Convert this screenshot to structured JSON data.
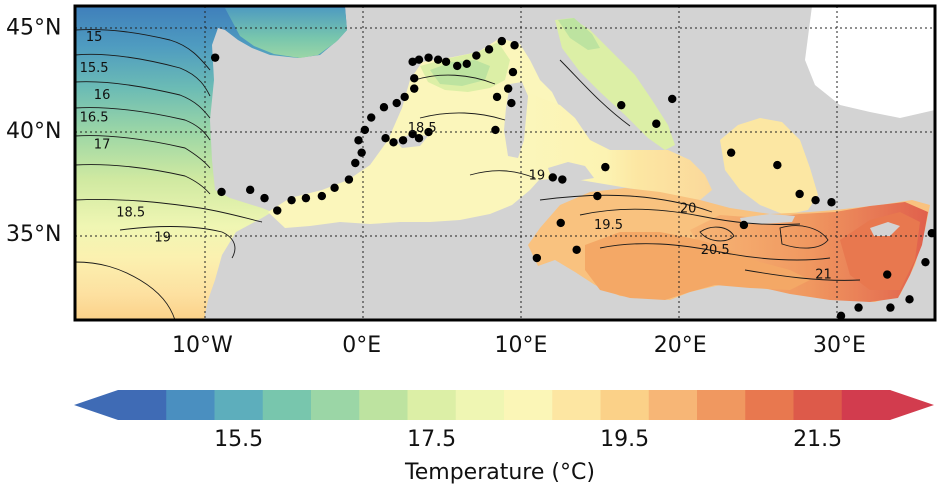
{
  "map": {
    "type": "sea-surface-temperature-map",
    "lon_range": [
      -18,
      36
    ],
    "lat_range": [
      30.8,
      46
    ],
    "grid": true,
    "land_color": "#d3d3d3",
    "lat_ticks": [
      {
        "value": 45,
        "label": "45°N"
      },
      {
        "value": 40,
        "label": "40°N"
      },
      {
        "value": 35,
        "label": "35°N"
      }
    ],
    "lon_ticks": [
      {
        "value": -10,
        "label": "10°W"
      },
      {
        "value": 0,
        "label": "0°E"
      },
      {
        "value": 10,
        "label": "10°E"
      },
      {
        "value": 20,
        "label": "20°E"
      },
      {
        "value": 30,
        "label": "30°E"
      }
    ],
    "contour_labels": [
      {
        "text": "15",
        "lon": -16.8,
        "lat": 44.3
      },
      {
        "text": "15.5",
        "lon": -16.8,
        "lat": 42.8
      },
      {
        "text": "16",
        "lon": -16.3,
        "lat": 41.5
      },
      {
        "text": "16.5",
        "lon": -16.8,
        "lat": 40.4
      },
      {
        "text": "17",
        "lon": -16.3,
        "lat": 39.1
      },
      {
        "text": "18.5",
        "lon": -14.5,
        "lat": 35.8
      },
      {
        "text": "19",
        "lon": -12.5,
        "lat": 34.6
      },
      {
        "text": "18.5",
        "lon": 3.8,
        "lat": 39.9
      },
      {
        "text": "19",
        "lon": 11.0,
        "lat": 37.6
      },
      {
        "text": "19.5",
        "lon": 15.5,
        "lat": 35.2
      },
      {
        "text": "20",
        "lon": 20.5,
        "lat": 36.0
      },
      {
        "text": "20.5",
        "lon": 22.2,
        "lat": 34.0
      },
      {
        "text": "21",
        "lon": 29.0,
        "lat": 32.8
      }
    ],
    "stations": [
      {
        "lon": 3.2,
        "lat": 43.3
      },
      {
        "lon": 3.6,
        "lat": 43.4
      },
      {
        "lon": 4.2,
        "lat": 43.5
      },
      {
        "lon": 4.8,
        "lat": 43.4
      },
      {
        "lon": 5.3,
        "lat": 43.3
      },
      {
        "lon": 6.0,
        "lat": 43.1
      },
      {
        "lon": 6.6,
        "lat": 43.2
      },
      {
        "lon": 7.2,
        "lat": 43.6
      },
      {
        "lon": 8.0,
        "lat": 43.9
      },
      {
        "lon": 8.8,
        "lat": 44.3
      },
      {
        "lon": 9.6,
        "lat": 44.1
      },
      {
        "lon": 3.3,
        "lat": 42.5
      },
      {
        "lon": 3.3,
        "lat": 42.0
      },
      {
        "lon": 2.7,
        "lat": 41.6
      },
      {
        "lon": 2.2,
        "lat": 41.3
      },
      {
        "lon": 1.4,
        "lat": 41.1
      },
      {
        "lon": 0.6,
        "lat": 40.6
      },
      {
        "lon": 0.2,
        "lat": 40.0
      },
      {
        "lon": -0.2,
        "lat": 39.5
      },
      {
        "lon": 0.0,
        "lat": 38.9
      },
      {
        "lon": -0.4,
        "lat": 38.4
      },
      {
        "lon": -0.8,
        "lat": 37.6
      },
      {
        "lon": -1.7,
        "lat": 37.2
      },
      {
        "lon": -2.5,
        "lat": 36.8
      },
      {
        "lon": -3.5,
        "lat": 36.7
      },
      {
        "lon": -4.4,
        "lat": 36.6
      },
      {
        "lon": -5.3,
        "lat": 36.1
      },
      {
        "lon": -6.1,
        "lat": 36.7
      },
      {
        "lon": -7.0,
        "lat": 37.1
      },
      {
        "lon": -8.8,
        "lat": 37.0
      },
      {
        "lon": -9.2,
        "lat": 43.5
      },
      {
        "lon": 1.5,
        "lat": 39.6
      },
      {
        "lon": 2.0,
        "lat": 39.4
      },
      {
        "lon": 2.6,
        "lat": 39.5
      },
      {
        "lon": 3.2,
        "lat": 39.8
      },
      {
        "lon": 3.6,
        "lat": 39.6
      },
      {
        "lon": 4.2,
        "lat": 39.9
      },
      {
        "lon": 8.5,
        "lat": 41.6
      },
      {
        "lon": 9.2,
        "lat": 42.0
      },
      {
        "lon": 9.5,
        "lat": 42.8
      },
      {
        "lon": 9.4,
        "lat": 41.3
      },
      {
        "lon": 8.4,
        "lat": 40.0
      },
      {
        "lon": 12.0,
        "lat": 37.7
      },
      {
        "lon": 12.6,
        "lat": 37.6
      },
      {
        "lon": 12.5,
        "lat": 35.5
      },
      {
        "lon": 11.0,
        "lat": 33.8
      },
      {
        "lon": 15.3,
        "lat": 38.2
      },
      {
        "lon": 16.3,
        "lat": 41.2
      },
      {
        "lon": 18.5,
        "lat": 40.3
      },
      {
        "lon": 19.5,
        "lat": 41.5
      },
      {
        "lon": 13.5,
        "lat": 34.2
      },
      {
        "lon": 14.8,
        "lat": 36.8
      },
      {
        "lon": 23.2,
        "lat": 38.9
      },
      {
        "lon": 24.0,
        "lat": 35.4
      },
      {
        "lon": 26.1,
        "lat": 38.3
      },
      {
        "lon": 27.5,
        "lat": 36.9
      },
      {
        "lon": 29.5,
        "lat": 36.5
      },
      {
        "lon": 33.0,
        "lat": 33.0
      },
      {
        "lon": 34.4,
        "lat": 31.8
      },
      {
        "lon": 35.4,
        "lat": 33.6
      },
      {
        "lon": 33.2,
        "lat": 31.4
      },
      {
        "lon": 31.2,
        "lat": 31.4
      },
      {
        "lon": 30.1,
        "lat": 31.0
      },
      {
        "lon": 35.8,
        "lat": 35.0
      },
      {
        "lon": 28.5,
        "lat": 36.6
      }
    ]
  },
  "colorbar": {
    "title": "Temperature (°C)",
    "ticks": [
      "15.5",
      "17.5",
      "19.5",
      "21.5"
    ],
    "colors": [
      "#3f6bb5",
      "#4a8fc0",
      "#5daebc",
      "#78c6ad",
      "#9bd6a6",
      "#bde3a0",
      "#dcefa6",
      "#eff6b3",
      "#fbf6b7",
      "#fde6a2",
      "#fbd188",
      "#f7b676",
      "#f09860",
      "#e8784f",
      "#dd5a4a",
      "#d23c4e"
    ]
  }
}
